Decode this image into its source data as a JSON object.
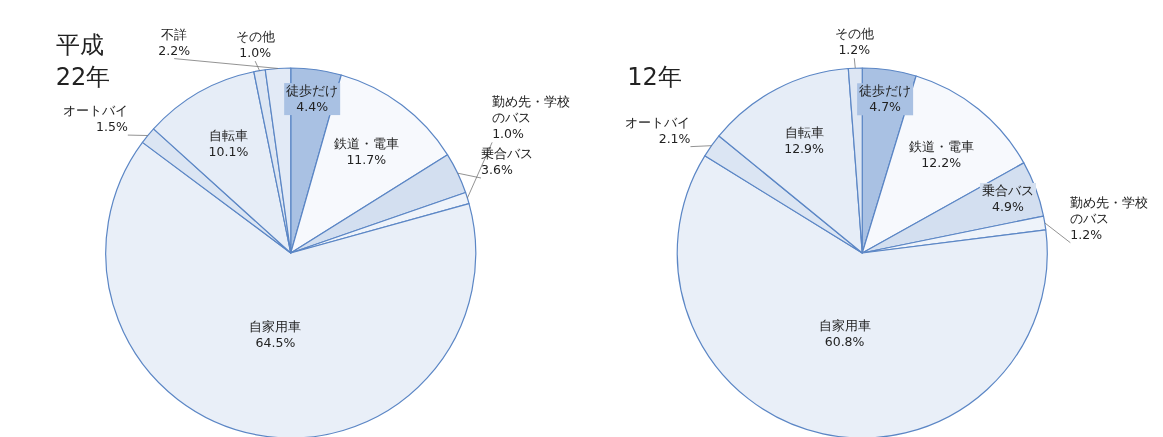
{
  "chart_data": [
    {
      "type": "pie",
      "title": "平成\n22年",
      "data_labels": true,
      "categories": [
        "徒歩だけ",
        "鉄道・電車",
        "乗合バス",
        "勤め先・学校のバス",
        "自家用車",
        "オートバイ",
        "自転車",
        "その他",
        "不詳"
      ],
      "values": [
        4.4,
        11.7,
        3.6,
        1.0,
        64.5,
        1.5,
        10.1,
        1.0,
        2.2
      ],
      "value_labels": [
        "4.4%",
        "11.7%",
        "3.6%",
        "1.0%",
        "64.5%",
        "1.5%",
        "10.1%",
        "1.0%",
        "2.2%"
      ],
      "colors": [
        "#a9c1e3",
        "#f7f9fd",
        "#d3dff0",
        "#eef3fa",
        "#e9eff8",
        "#dbe5f3",
        "#e6edf7",
        "#dde6f3",
        "#e2eaf6"
      ]
    },
    {
      "type": "pie",
      "title": "12年",
      "data_labels": true,
      "categories": [
        "徒歩だけ",
        "鉄道・電車",
        "乗合バス",
        "勤め先・学校のバス",
        "自家用車",
        "オートバイ",
        "自転車",
        "その他"
      ],
      "values": [
        4.7,
        12.2,
        4.9,
        1.2,
        60.8,
        2.1,
        12.9,
        1.2
      ],
      "value_labels": [
        "4.7%",
        "12.2%",
        "4.9%",
        "1.2%",
        "60.8%",
        "2.1%",
        "12.9%",
        "1.2%"
      ],
      "colors": [
        "#a9c1e3",
        "#f7f9fd",
        "#d3dff0",
        "#eef3fa",
        "#e9eff8",
        "#dbe5f3",
        "#e6edf7",
        "#dde6f3"
      ]
    }
  ]
}
